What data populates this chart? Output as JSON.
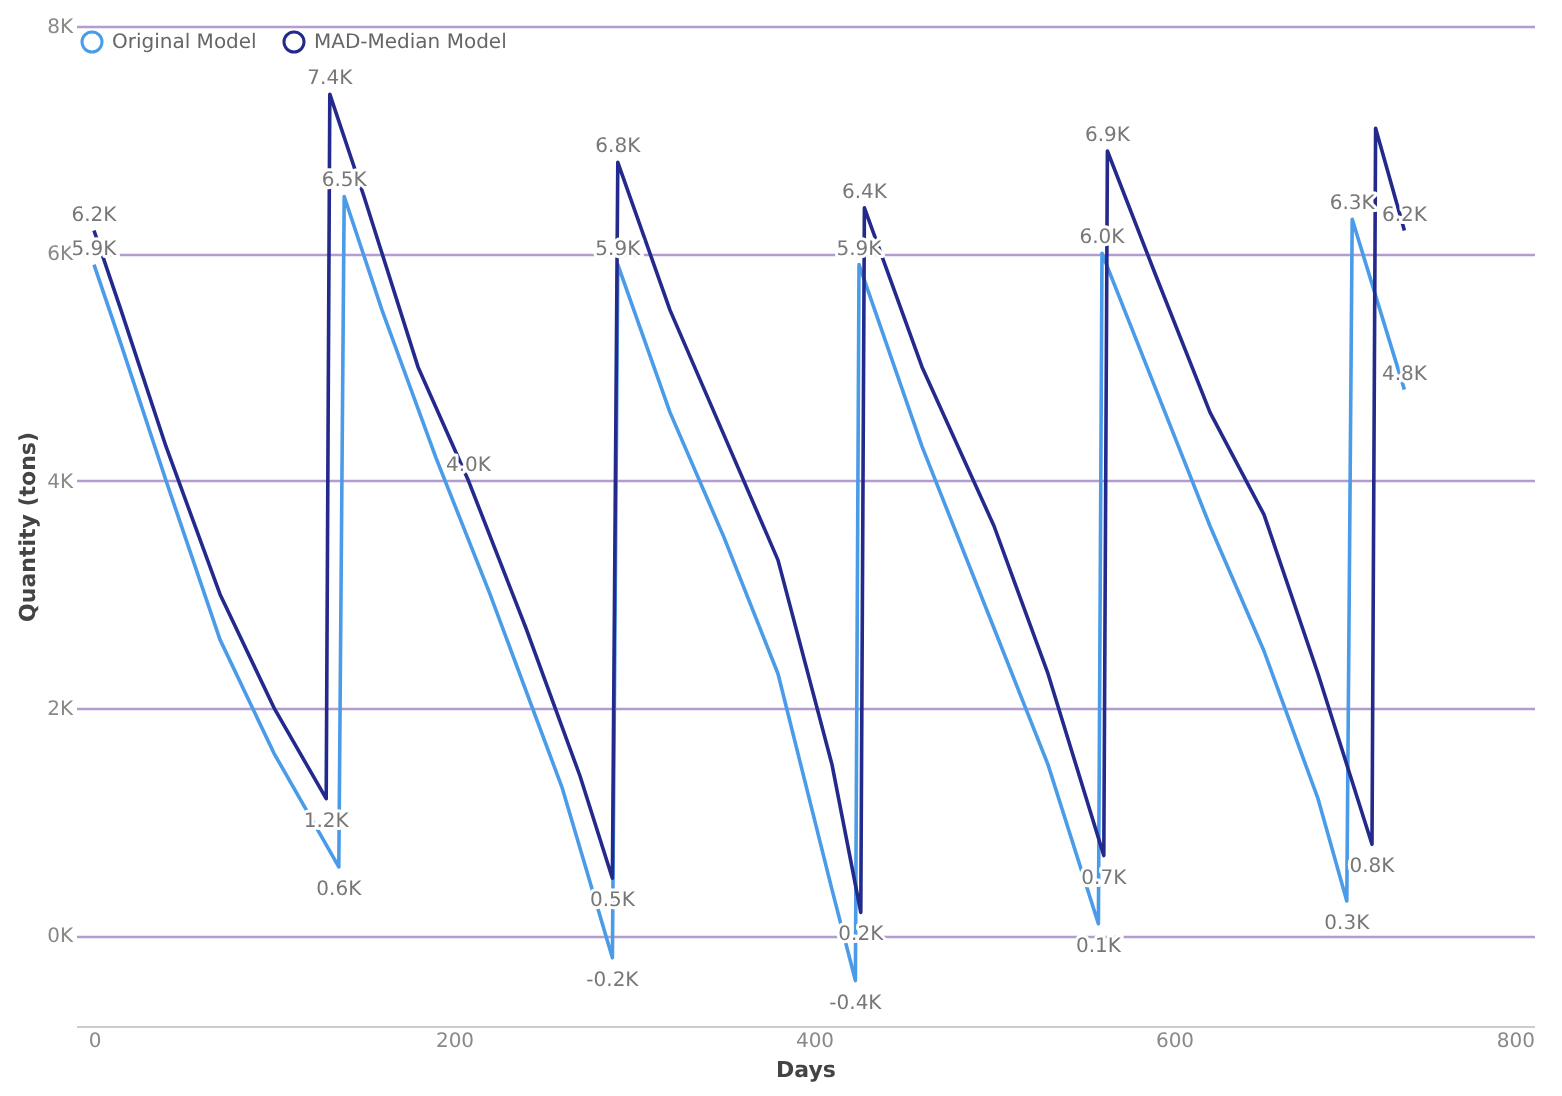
{
  "chart_data": {
    "type": "line",
    "xlabel": "Days",
    "ylabel": "Quantity (tons)",
    "xlim": [
      -10,
      800
    ],
    "xticks": [
      0,
      200,
      400,
      600,
      800
    ],
    "ylim": [
      -800,
      8000
    ],
    "yticks": [
      {
        "value": 0,
        "label": "0K"
      },
      {
        "value": 2000,
        "label": "2K"
      },
      {
        "value": 4000,
        "label": "4K"
      },
      {
        "value": 6000,
        "label": "6K"
      },
      {
        "value": 8000,
        "label": "8K"
      }
    ],
    "grid": "y",
    "legend": "top left",
    "marker": "none",
    "line_style": "solid",
    "series": [
      {
        "name": "Original Model",
        "color": "#4a9be8",
        "x": [
          0,
          15,
          40,
          70,
          100,
          136,
          139,
          160,
          190,
          220,
          260,
          288,
          291,
          320,
          350,
          380,
          410,
          423,
          425,
          460,
          500,
          530,
          558,
          560,
          590,
          620,
          650,
          680,
          696,
          699,
          728
        ],
        "values": [
          5900,
          5200,
          4000,
          2600,
          1600,
          600,
          6500,
          5500,
          4200,
          3000,
          1300,
          -200,
          5900,
          4600,
          3500,
          2300,
          400,
          -400,
          5900,
          4300,
          2700,
          1500,
          100,
          6000,
          4800,
          3600,
          2500,
          1200,
          300,
          6300,
          4800
        ],
        "value_labels": [
          "5.9K",
          null,
          null,
          null,
          null,
          "0.6K",
          "6.5K",
          null,
          null,
          null,
          null,
          "-0.2K",
          "5.9K",
          null,
          null,
          null,
          null,
          "-0.4K",
          "5.9K",
          null,
          null,
          null,
          "0.1K",
          "6.0K",
          null,
          null,
          null,
          null,
          "0.3K",
          "6.3K",
          "4.8K"
        ]
      },
      {
        "name": "MAD-Median Model",
        "color": "#232a8c",
        "x": [
          0,
          15,
          40,
          70,
          100,
          129,
          131,
          150,
          180,
          208,
          240,
          270,
          288,
          291,
          320,
          350,
          380,
          410,
          426,
          428,
          460,
          500,
          530,
          561,
          563,
          590,
          620,
          650,
          680,
          710,
          712,
          728
        ],
        "values": [
          6200,
          5500,
          4300,
          3000,
          2000,
          1200,
          7400,
          6500,
          5000,
          4000,
          2700,
          1400,
          500,
          6800,
          5500,
          4400,
          3300,
          1500,
          200,
          6400,
          5000,
          3600,
          2300,
          700,
          6900,
          5800,
          4600,
          3700,
          2300,
          800,
          7100,
          6200
        ],
        "value_labels": [
          "6.2K",
          null,
          null,
          null,
          null,
          "1.2K",
          "7.4K",
          null,
          null,
          "4.0K",
          null,
          null,
          "0.5K",
          "6.8K",
          null,
          null,
          null,
          null,
          "0.2K",
          "6.4K",
          null,
          null,
          null,
          "0.7K",
          "6.9K",
          null,
          null,
          null,
          null,
          "0.8K",
          null,
          "6.2K"
        ]
      }
    ]
  }
}
